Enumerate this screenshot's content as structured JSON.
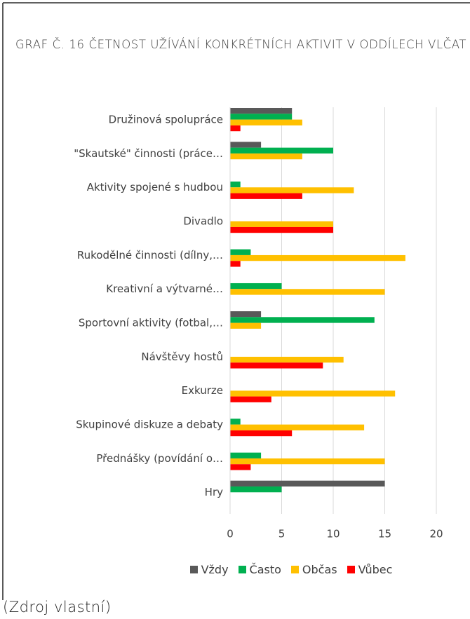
{
  "chart_data": {
    "type": "barh",
    "title": "GRAF Č. 16 ČETNOST UŽÍVÁNÍ KONKRÉTNÍCH AKTIVIT V ODDÍLECH VLČAT",
    "categories": [
      "Družinová spolupráce",
      "\"Skautské\" činnosti (práce…",
      "Aktivity spojené s hudbou",
      "Divadlo",
      "Rukodělné činnosti (dílny,…",
      "Kreativní a výtvarné…",
      "Sportovní aktivity (fotbal,…",
      "Návštěvy hostů",
      "Exkurze",
      "Skupinové diskuze a debaty",
      "Přednášky (povídání o…",
      "Hry"
    ],
    "series": [
      {
        "name": "Vždy",
        "color": "#595959",
        "values": [
          6,
          3,
          0,
          0,
          0,
          0,
          3,
          0,
          0,
          0,
          0,
          15
        ]
      },
      {
        "name": "Často",
        "color": "#00b050",
        "values": [
          6,
          10,
          1,
          0,
          2,
          5,
          14,
          0,
          0,
          1,
          3,
          5
        ]
      },
      {
        "name": "Občas",
        "color": "#ffc000",
        "values": [
          7,
          7,
          12,
          10,
          17,
          15,
          3,
          11,
          16,
          13,
          15,
          0
        ]
      },
      {
        "name": "Vůbec",
        "color": "#ff0000",
        "values": [
          1,
          0,
          7,
          10,
          1,
          0,
          0,
          9,
          4,
          6,
          2,
          0
        ]
      }
    ],
    "xlim": [
      0,
      20
    ],
    "xticks": [
      0,
      5,
      10,
      15,
      20
    ],
    "grid": true,
    "legend": "bottom",
    "source": "(Zdroj vlastní)"
  }
}
